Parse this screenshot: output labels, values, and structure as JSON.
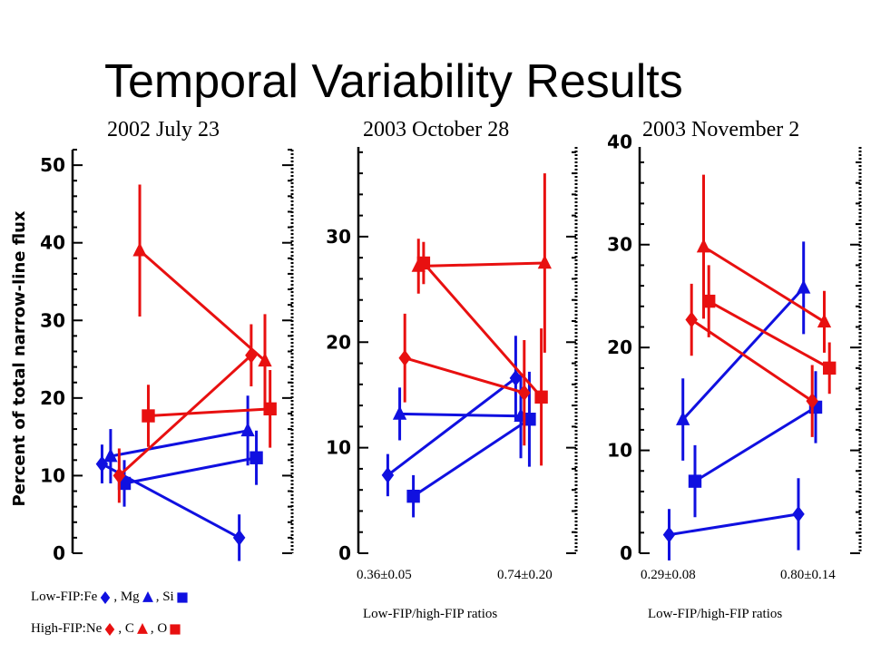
{
  "title": "Temporal Variability Results",
  "colors": {
    "low_fip": "#1010e0",
    "high_fip": "#e81010"
  },
  "legend": {
    "low_prefix": "Low-FIP: ",
    "high_prefix": "High-FIP: ",
    "low_items": [
      {
        "label": "Fe",
        "marker": "diamond",
        "sep": ", "
      },
      {
        "label": "Mg",
        "marker": "triangle",
        "sep": ", "
      },
      {
        "label": "Si",
        "marker": "square",
        "sep": ""
      }
    ],
    "high_items": [
      {
        "label": "Ne",
        "marker": "diamond",
        "sep": ", "
      },
      {
        "label": "C",
        "marker": "triangle",
        "sep": ", "
      },
      {
        "label": "O",
        "marker": "square",
        "sep": ""
      }
    ]
  },
  "ratios": [
    {
      "first": "",
      "second": "",
      "caption": ""
    },
    {
      "first": "0.36±0.05",
      "second": "0.74±0.20",
      "caption": "Low-FIP/high-FIP ratios"
    },
    {
      "first": "0.29±0.08",
      "second": "0.80±0.14",
      "caption": "Low-FIP/high-FIP ratios"
    }
  ],
  "chart_data": [
    {
      "type": "scatter",
      "title": "2002 July 23",
      "ylabel": "Percent of total narrow-line flux",
      "ylim": [
        0,
        52
      ],
      "yticks": [
        0,
        10,
        20,
        30,
        40,
        50
      ],
      "ytick_labels": [
        "0",
        "10",
        "20",
        "30",
        "40",
        "50"
      ],
      "series": [
        {
          "name": "Fe",
          "group": "low",
          "marker": "diamond",
          "points": [
            {
              "x": 0.05,
              "y": 11.5,
              "err": 2.5
            },
            {
              "x": 0.85,
              "y": 2.0,
              "err": 3.0
            }
          ]
        },
        {
          "name": "Mg",
          "group": "low",
          "marker": "triangle",
          "points": [
            {
              "x": 0.1,
              "y": 12.5,
              "err": 3.5
            },
            {
              "x": 0.9,
              "y": 15.8,
              "err": 4.5
            }
          ]
        },
        {
          "name": "Si",
          "group": "low",
          "marker": "square",
          "points": [
            {
              "x": 0.18,
              "y": 9.0,
              "err": 3.0
            },
            {
              "x": 0.95,
              "y": 12.3,
              "err": 3.5
            }
          ]
        },
        {
          "name": "Ne",
          "group": "high",
          "marker": "diamond",
          "points": [
            {
              "x": 0.15,
              "y": 10.0,
              "err": 3.5
            },
            {
              "x": 0.92,
              "y": 25.5,
              "err": 4.0
            }
          ]
        },
        {
          "name": "C",
          "group": "high",
          "marker": "triangle",
          "points": [
            {
              "x": 0.27,
              "y": 39.0,
              "err": 8.5
            },
            {
              "x": 1.0,
              "y": 24.8,
              "err": 6.0
            }
          ]
        },
        {
          "name": "O",
          "group": "high",
          "marker": "square",
          "points": [
            {
              "x": 0.32,
              "y": 17.7,
              "err": 4.0
            },
            {
              "x": 1.03,
              "y": 18.6,
              "err": 5.0
            }
          ]
        }
      ]
    },
    {
      "type": "scatter",
      "title": "2003 October 28",
      "ylabel": "",
      "ylim": [
        0,
        38.5
      ],
      "yticks": [
        0,
        10,
        20,
        30
      ],
      "ytick_labels": [
        "0",
        "10",
        "20",
        "30"
      ],
      "series": [
        {
          "name": "Fe",
          "group": "low",
          "marker": "diamond",
          "points": [
            {
              "x": 0.05,
              "y": 7.4,
              "err": 2.0
            },
            {
              "x": 0.8,
              "y": 16.6,
              "err": 4.0
            }
          ]
        },
        {
          "name": "Mg",
          "group": "low",
          "marker": "triangle",
          "points": [
            {
              "x": 0.12,
              "y": 13.2,
              "err": 2.5
            },
            {
              "x": 0.83,
              "y": 13.0,
              "err": 4.0
            }
          ]
        },
        {
          "name": "Si",
          "group": "low",
          "marker": "square",
          "points": [
            {
              "x": 0.2,
              "y": 5.4,
              "err": 2.0
            },
            {
              "x": 0.88,
              "y": 12.7,
              "err": 4.5
            }
          ]
        },
        {
          "name": "Ne",
          "group": "high",
          "marker": "diamond",
          "points": [
            {
              "x": 0.15,
              "y": 18.5,
              "err": 4.2
            },
            {
              "x": 0.85,
              "y": 15.2,
              "err": 5.0
            }
          ]
        },
        {
          "name": "C",
          "group": "high",
          "marker": "triangle",
          "points": [
            {
              "x": 0.23,
              "y": 27.2,
              "err": 2.6
            },
            {
              "x": 0.97,
              "y": 27.5,
              "err": 8.5
            }
          ]
        },
        {
          "name": "O",
          "group": "high",
          "marker": "square",
          "points": [
            {
              "x": 0.26,
              "y": 27.5,
              "err": 2.0
            },
            {
              "x": 0.95,
              "y": 14.8,
              "err": 6.5
            }
          ]
        }
      ]
    },
    {
      "type": "scatter",
      "title": "2003 November 2",
      "ylabel": "",
      "ylim": [
        0,
        39.5
      ],
      "yticks": [
        0,
        10,
        20,
        30,
        40
      ],
      "ytick_labels": [
        "0",
        "10",
        "20",
        "30",
        "40"
      ],
      "series": [
        {
          "name": "Fe",
          "group": "low",
          "marker": "diamond",
          "points": [
            {
              "x": 0.05,
              "y": 1.8,
              "err": 2.5
            },
            {
              "x": 0.8,
              "y": 3.8,
              "err": 3.5
            }
          ]
        },
        {
          "name": "Mg",
          "group": "low",
          "marker": "triangle",
          "points": [
            {
              "x": 0.13,
              "y": 13.0,
              "err": 4.0
            },
            {
              "x": 0.83,
              "y": 25.8,
              "err": 4.5
            }
          ]
        },
        {
          "name": "Si",
          "group": "low",
          "marker": "square",
          "points": [
            {
              "x": 0.2,
              "y": 7.0,
              "err": 3.5
            },
            {
              "x": 0.9,
              "y": 14.2,
              "err": 3.5
            }
          ]
        },
        {
          "name": "Ne",
          "group": "high",
          "marker": "diamond",
          "points": [
            {
              "x": 0.18,
              "y": 22.7,
              "err": 3.5
            },
            {
              "x": 0.88,
              "y": 14.8,
              "err": 3.5
            }
          ]
        },
        {
          "name": "C",
          "group": "high",
          "marker": "triangle",
          "points": [
            {
              "x": 0.25,
              "y": 29.8,
              "err": 7.0
            },
            {
              "x": 0.95,
              "y": 22.5,
              "err": 3.0
            }
          ]
        },
        {
          "name": "O",
          "group": "high",
          "marker": "square",
          "points": [
            {
              "x": 0.28,
              "y": 24.5,
              "err": 3.5
            },
            {
              "x": 0.98,
              "y": 18.0,
              "err": 2.5
            }
          ]
        }
      ]
    }
  ]
}
